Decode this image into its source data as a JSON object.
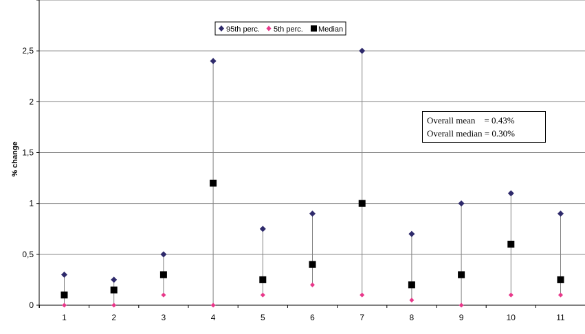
{
  "chart_data": {
    "type": "scatter",
    "title": "",
    "xlabel": "",
    "ylabel": "% change",
    "categories": [
      "1",
      "2",
      "3",
      "4",
      "5",
      "6",
      "7",
      "8",
      "9",
      "10",
      "11"
    ],
    "ylim": [
      0,
      3
    ],
    "yticks": [
      "0",
      "0,5",
      "1",
      "1,5",
      "2",
      "2,5"
    ],
    "ytick_values": [
      0,
      0.5,
      1,
      1.5,
      2,
      2.5
    ],
    "grid": "horizontal",
    "legend_position": "top-center",
    "series": [
      {
        "name": "95th perc.",
        "marker": "diamond",
        "color": "#2e2a6b",
        "values": [
          0.3,
          0.25,
          0.5,
          2.4,
          0.75,
          0.9,
          2.5,
          0.7,
          1.0,
          1.1,
          0.9
        ]
      },
      {
        "name": "5th perc.",
        "marker": "diamond",
        "color": "#e8388a",
        "values": [
          0,
          0,
          0.1,
          0,
          0.1,
          0.2,
          0.1,
          0.05,
          0,
          0.1,
          0.1
        ]
      },
      {
        "name": "Median",
        "marker": "square",
        "color": "#000000",
        "values": [
          0.1,
          0.15,
          0.3,
          1.2,
          0.25,
          0.4,
          1.0,
          0.2,
          0.3,
          0.6,
          0.25
        ]
      }
    ],
    "annotation": {
      "line1": "Overall mean    = 0.43%",
      "line2": "Overall median = 0.30%"
    }
  },
  "colors": {
    "grid": "#808080",
    "whisker": "#808080",
    "axis": "#000000"
  }
}
